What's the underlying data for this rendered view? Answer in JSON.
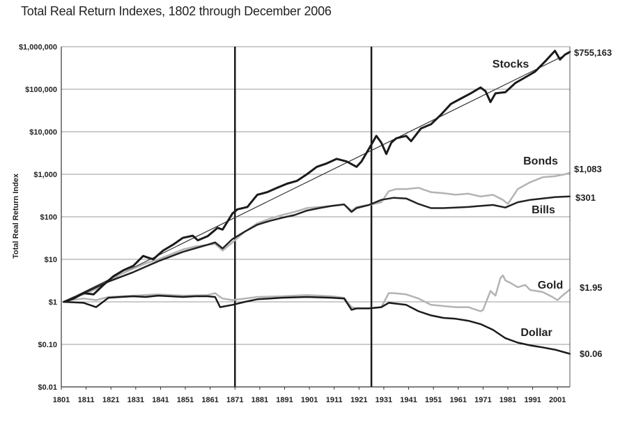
{
  "chart_data": {
    "type": "line",
    "title": "Total Real Return Indexes, 1802 through December 2006",
    "ylabel": "Total Real Return Index",
    "xlabel": "",
    "y_scale": "log",
    "ylim": [
      0.01,
      1000000
    ],
    "xlim": [
      1801,
      2006
    ],
    "grid": true,
    "y_ticks": [
      {
        "value": 0.01,
        "label": "$0.01"
      },
      {
        "value": 0.1,
        "label": "$0.10"
      },
      {
        "value": 1,
        "label": "$1"
      },
      {
        "value": 10,
        "label": "$10"
      },
      {
        "value": 100,
        "label": "$100"
      },
      {
        "value": 1000,
        "label": "$1,000"
      },
      {
        "value": 10000,
        "label": "$10,000"
      },
      {
        "value": 100000,
        "label": "$100,000"
      },
      {
        "value": 1000000,
        "label": "$1,000,000"
      }
    ],
    "x_ticks": [
      {
        "value": 1801,
        "label": "1801"
      },
      {
        "value": 1811,
        "label": "1811"
      },
      {
        "value": 1821,
        "label": "1821"
      },
      {
        "value": 1831,
        "label": "1831"
      },
      {
        "value": 1841,
        "label": "1841"
      },
      {
        "value": 1851,
        "label": "1851"
      },
      {
        "value": 1861,
        "label": "1861"
      },
      {
        "value": 1871,
        "label": "1871"
      },
      {
        "value": 1881,
        "label": "1881"
      },
      {
        "value": 1891,
        "label": "1891"
      },
      {
        "value": 1901,
        "label": "1901"
      },
      {
        "value": 1911,
        "label": "1911"
      },
      {
        "value": 1921,
        "label": "1921"
      },
      {
        "value": 1931,
        "label": "1931"
      },
      {
        "value": 1941,
        "label": "1941"
      },
      {
        "value": 1951,
        "label": "1951"
      },
      {
        "value": 1961,
        "label": "1961"
      },
      {
        "value": 1971,
        "label": "1971"
      },
      {
        "value": 1981,
        "label": "1981"
      },
      {
        "value": 1991,
        "label": "1991"
      },
      {
        "value": 2001,
        "label": "2001"
      }
    ],
    "vertical_lines": [
      1871,
      1926
    ],
    "trend_line": {
      "x": [
        1802,
        2006
      ],
      "y": [
        1,
        720000
      ],
      "color": "#333333"
    },
    "series": [
      {
        "name": "Stocks",
        "end_label": "$755,163",
        "color": "#1a1a1a",
        "width": 3,
        "x": [
          1802,
          1806,
          1810,
          1814,
          1818,
          1822,
          1826,
          1830,
          1834,
          1838,
          1842,
          1846,
          1850,
          1854,
          1856,
          1860,
          1864,
          1866,
          1870,
          1872,
          1876,
          1880,
          1884,
          1888,
          1892,
          1896,
          1900,
          1904,
          1908,
          1912,
          1916,
          1920,
          1922,
          1926,
          1928,
          1930,
          1932,
          1934,
          1936,
          1940,
          1942,
          1946,
          1950,
          1954,
          1958,
          1962,
          1966,
          1970,
          1972,
          1974,
          1976,
          1980,
          1984,
          1988,
          1992,
          1996,
          2000,
          2002,
          2004,
          2006
        ],
        "y": [
          1,
          1.2,
          1.6,
          1.5,
          2.5,
          4,
          5.5,
          7,
          12,
          10,
          16,
          22,
          32,
          36,
          28,
          35,
          55,
          50,
          120,
          150,
          170,
          330,
          380,
          480,
          600,
          700,
          1000,
          1500,
          1800,
          2300,
          2000,
          1500,
          2000,
          5000,
          8000,
          5500,
          3000,
          5500,
          7000,
          8000,
          6000,
          12000,
          15000,
          25000,
          45000,
          60000,
          80000,
          110000,
          90000,
          50000,
          80000,
          85000,
          140000,
          190000,
          260000,
          450000,
          800000,
          500000,
          650000,
          755163
        ]
      },
      {
        "name": "Bonds",
        "end_label": "$1,083",
        "color": "#b3b3b3",
        "width": 2.5,
        "x": [
          1802,
          1806,
          1810,
          1815,
          1820,
          1825,
          1830,
          1835,
          1840,
          1845,
          1850,
          1855,
          1860,
          1863,
          1866,
          1870,
          1875,
          1880,
          1885,
          1890,
          1895,
          1900,
          1905,
          1910,
          1915,
          1918,
          1920,
          1925,
          1930,
          1933,
          1936,
          1940,
          1945,
          1950,
          1955,
          1960,
          1965,
          1970,
          1975,
          1979,
          1981,
          1985,
          1990,
          1995,
          2000,
          2004,
          2006
        ],
        "y": [
          1,
          1.3,
          1.5,
          2,
          3,
          4.5,
          6,
          8,
          10,
          13,
          17,
          20,
          22,
          23,
          16,
          25,
          45,
          70,
          90,
          110,
          130,
          160,
          170,
          180,
          195,
          140,
          170,
          190,
          220,
          400,
          450,
          450,
          480,
          380,
          360,
          330,
          350,
          300,
          330,
          250,
          200,
          450,
          650,
          850,
          900,
          1000,
          1083
        ]
      },
      {
        "name": "Bills",
        "end_label": "$301",
        "color": "#222222",
        "width": 2.5,
        "x": [
          1802,
          1810,
          1820,
          1830,
          1840,
          1850,
          1860,
          1863,
          1866,
          1870,
          1875,
          1880,
          1885,
          1890,
          1895,
          1900,
          1905,
          1910,
          1915,
          1918,
          1920,
          1925,
          1930,
          1935,
          1940,
          1945,
          1950,
          1955,
          1960,
          1965,
          1970,
          1975,
          1980,
          1985,
          1990,
          1995,
          2000,
          2006
        ],
        "y": [
          1,
          1.6,
          3,
          5,
          9,
          15,
          22,
          25,
          18,
          30,
          45,
          65,
          80,
          95,
          110,
          140,
          160,
          180,
          195,
          130,
          160,
          190,
          250,
          280,
          270,
          200,
          160,
          160,
          165,
          170,
          180,
          190,
          165,
          220,
          250,
          270,
          290,
          301
        ]
      },
      {
        "name": "Gold",
        "end_label": "$1.95",
        "color": "#b3b3b3",
        "width": 2.5,
        "x": [
          1802,
          1805,
          1810,
          1815,
          1820,
          1830,
          1840,
          1850,
          1860,
          1863,
          1865,
          1866,
          1870,
          1880,
          1890,
          1900,
          1910,
          1915,
          1918,
          1920,
          1925,
          1930,
          1933,
          1935,
          1940,
          1945,
          1950,
          1960,
          1965,
          1970,
          1971,
          1974,
          1976,
          1978,
          1979,
          1980,
          1982,
          1985,
          1988,
          1990,
          1995,
          1999,
          2001,
          2003,
          2006
        ],
        "y": [
          1,
          1.1,
          1.2,
          1.1,
          1.3,
          1.4,
          1.5,
          1.4,
          1.45,
          1.6,
          1.3,
          1.2,
          1.1,
          1.3,
          1.35,
          1.45,
          1.35,
          1.25,
          0.75,
          0.7,
          0.7,
          0.75,
          1.6,
          1.6,
          1.5,
          1.2,
          0.85,
          0.75,
          0.75,
          0.6,
          0.65,
          1.8,
          1.4,
          3.6,
          4.2,
          3.2,
          2.8,
          2.2,
          2.5,
          1.9,
          1.7,
          1.3,
          1.1,
          1.4,
          1.95
        ]
      },
      {
        "name": "Dollar",
        "end_label": "$0.06",
        "color": "#1a1a1a",
        "width": 2.5,
        "x": [
          1802,
          1810,
          1815,
          1820,
          1825,
          1830,
          1835,
          1840,
          1845,
          1850,
          1855,
          1860,
          1863,
          1865,
          1870,
          1875,
          1880,
          1890,
          1900,
          1910,
          1915,
          1918,
          1920,
          1925,
          1930,
          1933,
          1940,
          1945,
          1950,
          1955,
          1960,
          1965,
          1970,
          1975,
          1980,
          1985,
          1990,
          1995,
          2000,
          2006
        ],
        "y": [
          1,
          0.95,
          0.75,
          1.25,
          1.3,
          1.35,
          1.3,
          1.4,
          1.35,
          1.3,
          1.35,
          1.35,
          1.3,
          0.75,
          0.85,
          1.0,
          1.15,
          1.25,
          1.3,
          1.25,
          1.2,
          0.65,
          0.7,
          0.7,
          0.75,
          0.95,
          0.85,
          0.6,
          0.48,
          0.42,
          0.4,
          0.36,
          0.3,
          0.22,
          0.14,
          0.11,
          0.095,
          0.085,
          0.075,
          0.06
        ]
      }
    ]
  }
}
